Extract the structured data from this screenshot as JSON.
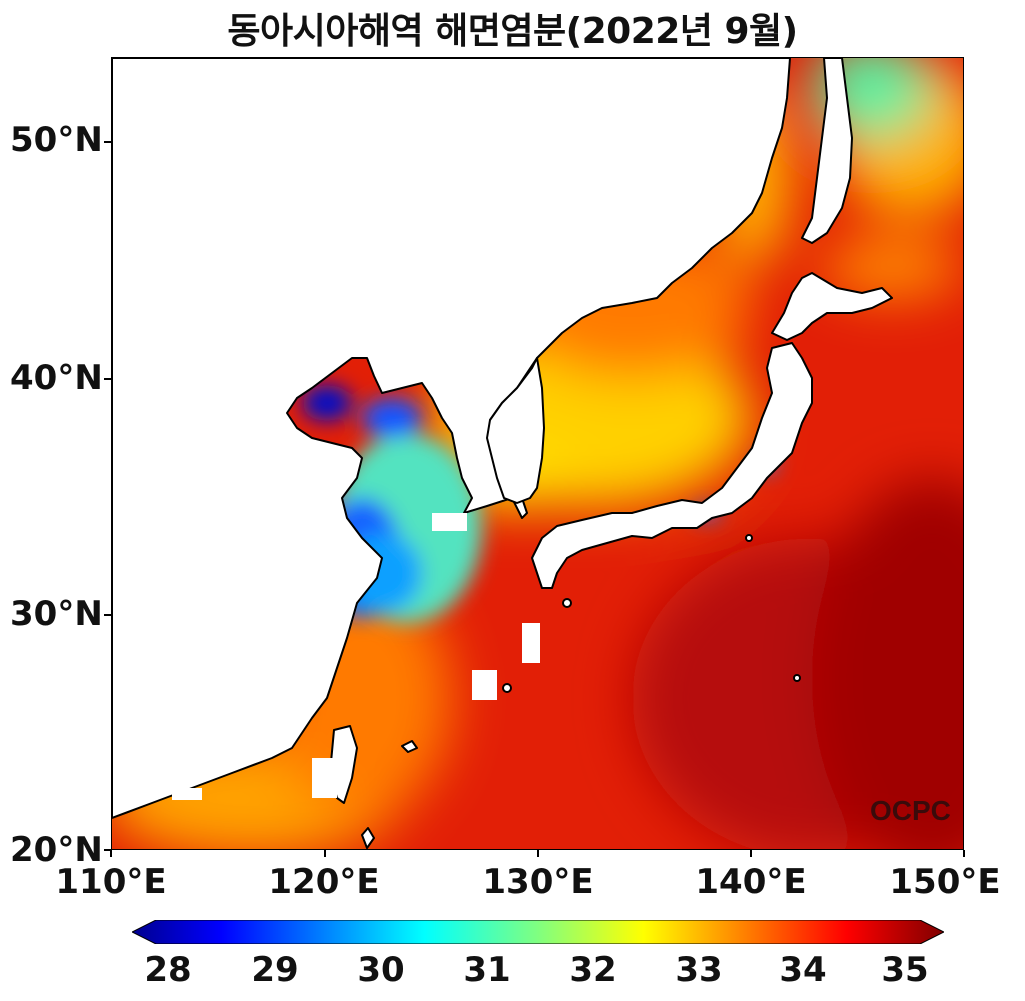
{
  "title": "동아시아해역 해면염분(2022년 9월)",
  "watermark": "OCPC",
  "axes": {
    "y_labels": [
      "50°N",
      "40°N",
      "30°N",
      "20°N"
    ],
    "x_labels": [
      "110°E",
      "120°E",
      "130°E",
      "140°E",
      "150°E"
    ],
    "lon_range": [
      110,
      150
    ],
    "lat_range": [
      20,
      53.4
    ]
  },
  "colorbar": {
    "min": 28,
    "max": 35,
    "ticks": [
      "28",
      "29",
      "30",
      "31",
      "32",
      "33",
      "34",
      "35"
    ],
    "colormap": "jet",
    "extend": "both"
  },
  "colors": {
    "coastline": "#000000",
    "land": "#ffffff"
  }
}
